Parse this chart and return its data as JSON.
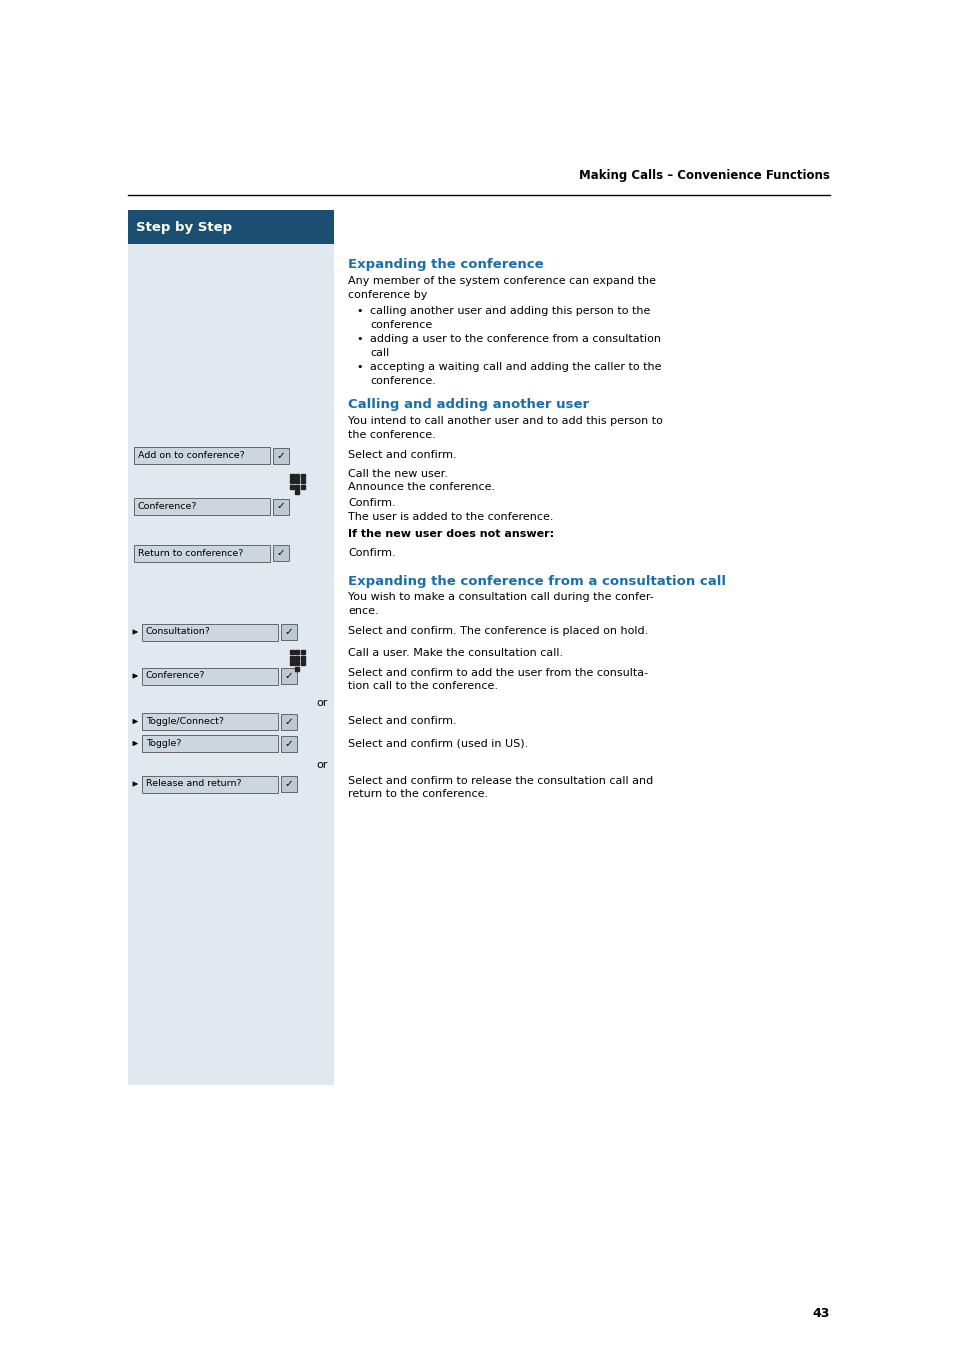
{
  "page_width": 9.54,
  "page_height": 13.51,
  "dpi": 100,
  "bg_color": "#ffffff",
  "left_panel_color": "#e2e8f0",
  "header_bg_color": "#1b4f72",
  "header_text": "Step by Step",
  "header_text_color": "#ffffff",
  "top_label": "Making Calls – Convenience Functions",
  "page_number": "43",
  "section1_title": "Expanding the conference",
  "section1_title_color": "#1a6fa8",
  "section1_body1": "Any member of the system conference can expand the",
  "section1_body2": "conference by",
  "bullets": [
    [
      "calling another user and adding this person to the",
      "conference"
    ],
    [
      "adding a user to the conference from a consultation",
      "call"
    ],
    [
      "accepting a waiting call and adding the caller to the",
      "conference."
    ]
  ],
  "section2_title": "Calling and adding another user",
  "section2_title_color": "#1a6fa8",
  "section2_body1": "You intend to call another user and to add this person to",
  "section2_body2": "the conference.",
  "section3_title": "Expanding the conference from a consultation call",
  "section3_title_color": "#1a6fa8",
  "section3_body1": "You wish to make a consultation call during the confer-",
  "section3_body2": "ence."
}
